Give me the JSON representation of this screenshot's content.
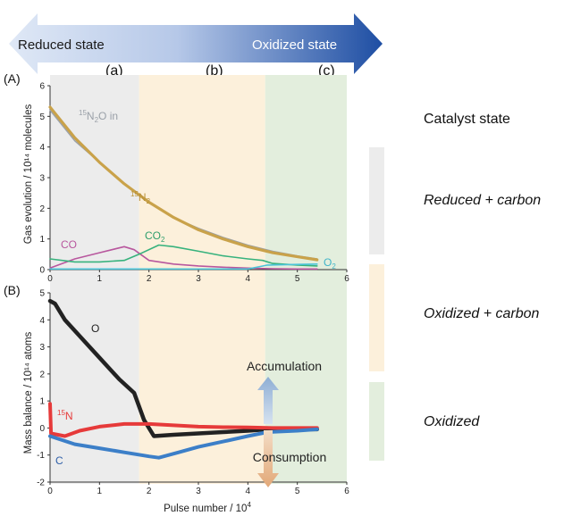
{
  "colors": {
    "reduced_region": "#ececec",
    "oxidized_carbon_region": "#fcf0db",
    "oxidized_region": "#e3eedd",
    "arrow_light": "#dfe8f6",
    "arrow_dark": "#1e4ea3",
    "n2o_in": "#9aa0a8",
    "n2": "#c9a24a",
    "co": "#b8579e",
    "co2": "#37b27d",
    "o2": "#4cc4d8",
    "o_balance": "#222222",
    "n_balance": "#e63a3a",
    "c_balance": "#3c7fc8",
    "accumulation_arrow": "#8eaed4",
    "consumption_arrow": "#e2b48a"
  },
  "header": {
    "reduced_label": "Reduced state",
    "oxidized_label": "Oxidized state",
    "region_a": "(a)",
    "region_b": "(b)",
    "region_c": "(c)"
  },
  "legend": {
    "title": "Catalyst state",
    "items": [
      {
        "label": "Reduced + carbon",
        "color": "#ececec"
      },
      {
        "label": "Oxidized  + carbon",
        "color": "#fcf0db"
      },
      {
        "label": "Oxidized",
        "color": "#e3eedd"
      }
    ]
  },
  "chart_data": [
    {
      "type": "line",
      "panel_label": "(A)",
      "ylabel": "Gas evolution / 10¹⁴ molecules",
      "xlim": [
        0,
        6
      ],
      "ylim": [
        0,
        6
      ],
      "xticks": [
        "0",
        "1",
        "2",
        "3",
        "4",
        "5",
        "6"
      ],
      "yticks": [
        "0",
        "1",
        "2",
        "3",
        "4",
        "5",
        "6"
      ],
      "regions": [
        {
          "name": "(a)",
          "from": 0,
          "to": 1.8
        },
        {
          "name": "(b)",
          "from": 1.8,
          "to": 4.35
        },
        {
          "name": "(c)",
          "from": 4.35,
          "to": 6
        }
      ],
      "series": [
        {
          "name": "¹⁵N₂O in",
          "x": [
            0,
            0.5,
            1,
            1.5,
            2,
            2.5,
            3,
            3.5,
            4,
            4.5,
            5,
            5.4
          ],
          "y": [
            5.2,
            4.2,
            3.5,
            2.8,
            2.2,
            1.7,
            1.35,
            1.05,
            0.8,
            0.6,
            0.45,
            0.35
          ]
        },
        {
          "name": "¹⁵N₂",
          "x": [
            0,
            0.5,
            1,
            1.5,
            2,
            2.5,
            3,
            3.5,
            4,
            4.5,
            5,
            5.4
          ],
          "y": [
            5.3,
            4.3,
            3.5,
            2.8,
            2.2,
            1.7,
            1.3,
            1.0,
            0.75,
            0.55,
            0.42,
            0.32
          ]
        },
        {
          "name": "CO",
          "x": [
            0,
            0.5,
            1,
            1.5,
            1.7,
            2,
            2.5,
            3,
            3.5,
            4,
            4.5,
            5,
            5.4
          ],
          "y": [
            0.05,
            0.35,
            0.55,
            0.75,
            0.65,
            0.3,
            0.18,
            0.12,
            0.08,
            0.05,
            0.03,
            0.02,
            0.02
          ]
        },
        {
          "name": "CO₂",
          "x": [
            0,
            0.5,
            1,
            1.5,
            1.8,
            2.2,
            2.5,
            3,
            3.5,
            4,
            4.3,
            4.5,
            5,
            5.4
          ],
          "y": [
            0.35,
            0.25,
            0.25,
            0.3,
            0.5,
            0.8,
            0.75,
            0.6,
            0.45,
            0.35,
            0.3,
            0.2,
            0.15,
            0.12
          ]
        },
        {
          "name": "O₂",
          "x": [
            0,
            1,
            2,
            3,
            4,
            4.4,
            5,
            5.4
          ],
          "y": [
            0.02,
            0.02,
            0.02,
            0.02,
            0.02,
            0.15,
            0.17,
            0.18
          ]
        }
      ]
    },
    {
      "type": "line",
      "panel_label": "(B)",
      "ylabel": "Mass balance / 10¹⁴ atoms",
      "xlabel": "Pulse number / 10⁴",
      "xlim": [
        0,
        6
      ],
      "ylim": [
        -2,
        5
      ],
      "xticks": [
        "0",
        "1",
        "2",
        "3",
        "4",
        "5",
        "6"
      ],
      "yticks": [
        "-2",
        "-1",
        "0",
        "1",
        "2",
        "3",
        "4",
        "5"
      ],
      "series": [
        {
          "name": "O",
          "x": [
            0,
            0.1,
            0.3,
            0.6,
            1,
            1.4,
            1.7,
            1.9,
            2.1,
            2.5,
            3,
            3.5,
            4,
            4.4,
            5,
            5.4
          ],
          "y": [
            4.7,
            4.6,
            4.0,
            3.4,
            2.6,
            1.8,
            1.3,
            0.3,
            -0.3,
            -0.25,
            -0.2,
            -0.15,
            -0.1,
            -0.05,
            -0.05,
            -0.05
          ]
        },
        {
          "name": "¹⁵N",
          "x": [
            0,
            0.02,
            0.3,
            0.6,
            1,
            1.5,
            2,
            2.5,
            3,
            3.5,
            4,
            4.5,
            5,
            5.4
          ],
          "y": [
            0.9,
            -0.2,
            -0.3,
            -0.1,
            0.05,
            0.15,
            0.15,
            0.1,
            0.05,
            0.03,
            0.02,
            0.0,
            0.0,
            0.0
          ]
        },
        {
          "name": "C",
          "x": [
            0,
            0.5,
            1,
            1.5,
            2,
            2.2,
            2.6,
            3,
            3.5,
            4,
            4.4,
            5,
            5.4
          ],
          "y": [
            -0.3,
            -0.6,
            -0.75,
            -0.9,
            -1.05,
            -1.1,
            -0.9,
            -0.7,
            -0.5,
            -0.3,
            -0.15,
            -0.1,
            -0.05
          ]
        }
      ],
      "annotations": [
        "Accumulation",
        "Consumption"
      ]
    }
  ]
}
